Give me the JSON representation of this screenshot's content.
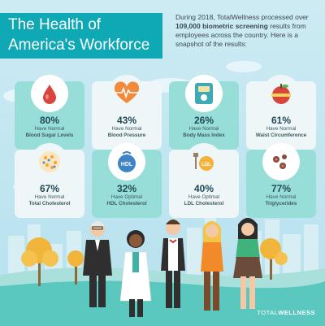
{
  "header": {
    "title_line1": "The Health of",
    "title_line2": "America's Workforce",
    "intro_part1": "During 2018, TotalWellness processed over ",
    "intro_bold": "109,000 biometric screening",
    "intro_part2": " results from employees across the country. Here is a snapshot of the results:"
  },
  "cards": [
    {
      "pct": "80%",
      "sub": "Have Normal",
      "name": "Blood Sugar Levels",
      "icon": "blood-drop-icon"
    },
    {
      "pct": "43%",
      "sub": "Have Normal",
      "name": "Blood Pressure",
      "icon": "heart-pulse-icon"
    },
    {
      "pct": "26%",
      "sub": "Have Normal",
      "name": "Body Mass Index",
      "icon": "scale-icon"
    },
    {
      "pct": "61%",
      "sub": "Have Normal",
      "name": "Waist Circumference",
      "icon": "apple-tape-icon"
    },
    {
      "pct": "67%",
      "sub": "Have Normal",
      "name": "Total Cholesterol",
      "icon": "cholesterol-cells-icon"
    },
    {
      "pct": "32%",
      "sub": "Have Optimal",
      "name": "HDL Cholesterol",
      "icon": "hdl-icon"
    },
    {
      "pct": "40%",
      "sub": "Have Optimal",
      "name": "LDL Cholesterol",
      "icon": "ldl-icon"
    },
    {
      "pct": "77%",
      "sub": "Have Normal",
      "name": "Triglycerides",
      "icon": "triglycerides-icon"
    }
  ],
  "logo": {
    "part1": "TOTAL",
    "part2": "WELLNESS"
  },
  "colors": {
    "accent": "#0fa8b5",
    "card_teal": "#98ded8",
    "card_white": "#eef6f7"
  }
}
